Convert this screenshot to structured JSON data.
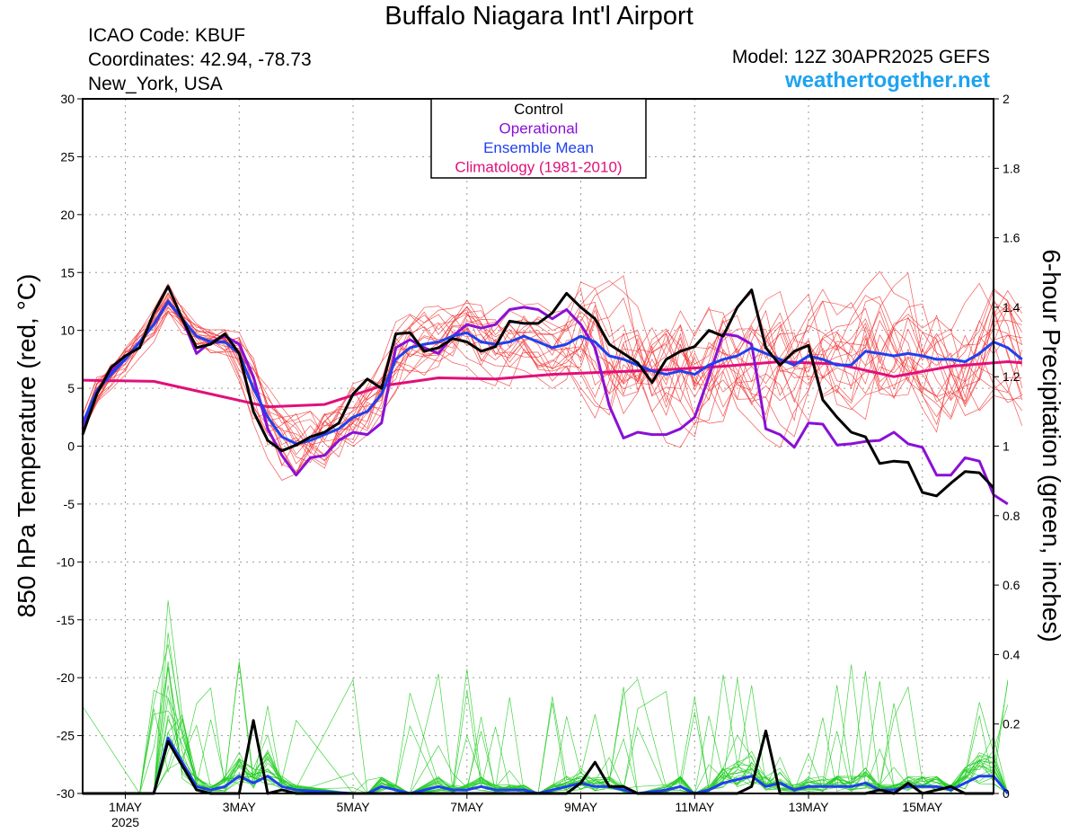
{
  "header": {
    "title": "Buffalo Niagara Int'l Airport",
    "icao": "ICAO Code: KBUF",
    "coordinates": "Coordinates: 42.94, -78.73",
    "location": "New_York, USA",
    "model": "Model: 12Z 30APR2025 GEFS",
    "site": "weathertogether.net"
  },
  "chart_data": {
    "type": "line",
    "ylabel_left": "850 hPa Temperature (red, °C)",
    "ylabel_right": "6-hour Precipitation (green, inches)",
    "ylim_left": [
      -30,
      30
    ],
    "ylim_right": [
      0,
      2
    ],
    "yticks_left": [
      "30",
      "25",
      "20",
      "15",
      "10",
      "5",
      "0",
      "-5",
      "-10",
      "-15",
      "-20",
      "-25",
      "-30"
    ],
    "yticks_right": [
      "2",
      "1.8",
      "1.6",
      "1.4",
      "1.2",
      "1",
      "0.8",
      "0.6",
      "0.4",
      "0.2",
      "0"
    ],
    "xlim_hours": [
      -6,
      378
    ],
    "xticks": [
      {
        "label": "1MAY",
        "sub": "2025",
        "hour": 12
      },
      {
        "label": "3MAY",
        "hour": 60
      },
      {
        "label": "5MAY",
        "hour": 108
      },
      {
        "label": "7MAY",
        "hour": 156
      },
      {
        "label": "9MAY",
        "hour": 204
      },
      {
        "label": "11MAY",
        "hour": 252
      },
      {
        "label": "13MAY",
        "hour": 300
      },
      {
        "label": "15MAY",
        "hour": 348
      }
    ],
    "grid": true,
    "legend": {
      "position": "top-center",
      "entries": [
        {
          "name": "Control",
          "color": "#000000"
        },
        {
          "name": "Operational",
          "color": "#8a10d6"
        },
        {
          "name": "Ensemble Mean",
          "color": "#2040ee"
        },
        {
          "name": "Climatology (1981-2010)",
          "color": "#e0107a"
        }
      ]
    },
    "colors": {
      "members_temp": "#f03030",
      "members_precip": "#22cc22",
      "control": "#000000",
      "operational": "#8a10d6",
      "mean": "#2040ee",
      "climatology": "#e0107a"
    },
    "temp_control": [
      [
        -6,
        1.0
      ],
      [
        0,
        4.5
      ],
      [
        6,
        6.8
      ],
      [
        12,
        7.8
      ],
      [
        18,
        8.5
      ],
      [
        24,
        11.5
      ],
      [
        30,
        13.8
      ],
      [
        36,
        11.0
      ],
      [
        42,
        8.5
      ],
      [
        48,
        8.8
      ],
      [
        54,
        9.7
      ],
      [
        60,
        8.0
      ],
      [
        66,
        3.0
      ],
      [
        72,
        0.5
      ],
      [
        78,
        -0.4
      ],
      [
        84,
        0.1
      ],
      [
        90,
        0.8
      ],
      [
        96,
        1.2
      ],
      [
        102,
        2.0
      ],
      [
        108,
        4.5
      ],
      [
        114,
        5.8
      ],
      [
        120,
        5.0
      ],
      [
        126,
        9.7
      ],
      [
        132,
        9.8
      ],
      [
        138,
        8.2
      ],
      [
        144,
        8.5
      ],
      [
        150,
        9.3
      ],
      [
        156,
        9.0
      ],
      [
        162,
        8.2
      ],
      [
        168,
        8.6
      ],
      [
        174,
        10.8
      ],
      [
        180,
        10.6
      ],
      [
        186,
        10.6
      ],
      [
        192,
        11.5
      ],
      [
        198,
        13.2
      ],
      [
        204,
        12.0
      ],
      [
        210,
        11.0
      ],
      [
        216,
        8.8
      ],
      [
        222,
        8.0
      ],
      [
        228,
        7.2
      ],
      [
        234,
        5.5
      ],
      [
        240,
        7.5
      ],
      [
        246,
        8.2
      ],
      [
        252,
        8.6
      ],
      [
        258,
        10.0
      ],
      [
        264,
        9.5
      ],
      [
        270,
        12.0
      ],
      [
        276,
        13.5
      ],
      [
        282,
        8.5
      ],
      [
        288,
        7.0
      ],
      [
        294,
        8.2
      ],
      [
        300,
        8.7
      ],
      [
        306,
        4.0
      ],
      [
        312,
        2.5
      ],
      [
        318,
        1.2
      ],
      [
        324,
        0.8
      ],
      [
        330,
        -1.5
      ],
      [
        336,
        -1.3
      ],
      [
        342,
        -1.4
      ],
      [
        348,
        -4.0
      ],
      [
        354,
        -4.3
      ],
      [
        360,
        -3.2
      ],
      [
        366,
        -2.2
      ],
      [
        372,
        -2.3
      ],
      [
        378,
        -3.6
      ]
    ],
    "temp_operational": [
      [
        -6,
        1.5
      ],
      [
        0,
        4.6
      ],
      [
        6,
        6.5
      ],
      [
        12,
        7.5
      ],
      [
        18,
        9.0
      ],
      [
        24,
        10.5
      ],
      [
        30,
        12.5
      ],
      [
        36,
        11.0
      ],
      [
        42,
        8.0
      ],
      [
        48,
        9.0
      ],
      [
        54,
        9.5
      ],
      [
        60,
        8.8
      ],
      [
        66,
        6.0
      ],
      [
        72,
        1.5
      ],
      [
        78,
        -0.8
      ],
      [
        84,
        -2.5
      ],
      [
        90,
        -1.0
      ],
      [
        96,
        -0.8
      ],
      [
        102,
        0.5
      ],
      [
        108,
        1.2
      ],
      [
        114,
        1.0
      ],
      [
        120,
        2.0
      ],
      [
        126,
        8.5
      ],
      [
        132,
        9.2
      ],
      [
        138,
        8.5
      ],
      [
        144,
        8.0
      ],
      [
        150,
        9.5
      ],
      [
        156,
        10.5
      ],
      [
        162,
        10.2
      ],
      [
        168,
        10.5
      ],
      [
        174,
        11.8
      ],
      [
        180,
        12.0
      ],
      [
        186,
        11.8
      ],
      [
        192,
        11.0
      ],
      [
        198,
        11.8
      ],
      [
        204,
        10.5
      ],
      [
        210,
        8.5
      ],
      [
        216,
        3.5
      ],
      [
        222,
        0.7
      ],
      [
        228,
        1.2
      ],
      [
        234,
        1.0
      ],
      [
        240,
        1.0
      ],
      [
        246,
        1.5
      ],
      [
        252,
        2.5
      ],
      [
        258,
        6.0
      ],
      [
        264,
        9.7
      ],
      [
        270,
        9.5
      ],
      [
        276,
        8.8
      ],
      [
        282,
        1.5
      ],
      [
        288,
        1.0
      ],
      [
        294,
        -0.1
      ],
      [
        300,
        2.0
      ],
      [
        306,
        1.9
      ],
      [
        312,
        0.1
      ],
      [
        318,
        0.2
      ],
      [
        324,
        0.4
      ],
      [
        330,
        0.5
      ],
      [
        336,
        1.2
      ],
      [
        342,
        0.2
      ],
      [
        348,
        -0.1
      ],
      [
        354,
        -2.5
      ],
      [
        360,
        -2.5
      ],
      [
        366,
        -1.0
      ],
      [
        372,
        -1.3
      ],
      [
        378,
        -4.2
      ],
      [
        384,
        -5.0
      ]
    ],
    "temp_mean": [
      [
        -6,
        2.0
      ],
      [
        0,
        4.8
      ],
      [
        6,
        6.2
      ],
      [
        12,
        7.5
      ],
      [
        18,
        9.0
      ],
      [
        24,
        10.5
      ],
      [
        30,
        12.5
      ],
      [
        36,
        11.0
      ],
      [
        42,
        9.5
      ],
      [
        48,
        9.0
      ],
      [
        54,
        9.0
      ],
      [
        60,
        8.0
      ],
      [
        66,
        5.0
      ],
      [
        72,
        2.5
      ],
      [
        78,
        0.8
      ],
      [
        84,
        0.2
      ],
      [
        90,
        0.5
      ],
      [
        96,
        1.0
      ],
      [
        102,
        1.5
      ],
      [
        108,
        2.5
      ],
      [
        114,
        3.0
      ],
      [
        120,
        4.5
      ],
      [
        126,
        7.5
      ],
      [
        132,
        8.5
      ],
      [
        138,
        8.8
      ],
      [
        144,
        9.0
      ],
      [
        150,
        9.5
      ],
      [
        156,
        9.8
      ],
      [
        162,
        9.0
      ],
      [
        168,
        8.8
      ],
      [
        174,
        9.0
      ],
      [
        180,
        9.5
      ],
      [
        186,
        9.0
      ],
      [
        192,
        8.5
      ],
      [
        198,
        8.8
      ],
      [
        204,
        9.5
      ],
      [
        210,
        9.0
      ],
      [
        216,
        7.8
      ],
      [
        222,
        7.5
      ],
      [
        228,
        7.0
      ],
      [
        234,
        6.5
      ],
      [
        240,
        6.2
      ],
      [
        246,
        6.5
      ],
      [
        252,
        6.2
      ],
      [
        258,
        7.0
      ],
      [
        264,
        7.5
      ],
      [
        270,
        7.8
      ],
      [
        276,
        8.5
      ],
      [
        282,
        8.0
      ],
      [
        288,
        7.5
      ],
      [
        294,
        7.0
      ],
      [
        300,
        7.8
      ],
      [
        306,
        7.5
      ],
      [
        312,
        7.0
      ],
      [
        318,
        7.0
      ],
      [
        324,
        8.2
      ],
      [
        330,
        8.0
      ],
      [
        336,
        7.8
      ],
      [
        342,
        8.0
      ],
      [
        348,
        7.8
      ],
      [
        354,
        7.5
      ],
      [
        360,
        7.5
      ],
      [
        366,
        7.3
      ],
      [
        372,
        8.0
      ],
      [
        378,
        9.0
      ],
      [
        384,
        8.5
      ],
      [
        390,
        7.5
      ]
    ],
    "temp_climatology": [
      [
        -6,
        5.7
      ],
      [
        24,
        5.6
      ],
      [
        48,
        4.5
      ],
      [
        72,
        3.4
      ],
      [
        96,
        3.6
      ],
      [
        120,
        5.2
      ],
      [
        144,
        5.9
      ],
      [
        168,
        5.8
      ],
      [
        192,
        6.2
      ],
      [
        216,
        6.4
      ],
      [
        240,
        6.6
      ],
      [
        264,
        6.9
      ],
      [
        288,
        7.3
      ],
      [
        312,
        7.1
      ],
      [
        336,
        6.0
      ],
      [
        360,
        6.9
      ],
      [
        384,
        7.3
      ],
      [
        390,
        7.2
      ]
    ],
    "precip_control": [
      [
        -6,
        0
      ],
      [
        18,
        0
      ],
      [
        24,
        0
      ],
      [
        30,
        0.15
      ],
      [
        36,
        0.08
      ],
      [
        42,
        0.01
      ],
      [
        48,
        0
      ],
      [
        54,
        0
      ],
      [
        60,
        0
      ],
      [
        66,
        0.21
      ],
      [
        72,
        0
      ],
      [
        78,
        0.01
      ],
      [
        84,
        0
      ],
      [
        180,
        0
      ],
      [
        198,
        0.0
      ],
      [
        204,
        0.03
      ],
      [
        210,
        0.09
      ],
      [
        216,
        0.02
      ],
      [
        222,
        0.02
      ],
      [
        228,
        0
      ],
      [
        264,
        0
      ],
      [
        270,
        0
      ],
      [
        276,
        0.02
      ],
      [
        282,
        0.18
      ],
      [
        288,
        0
      ],
      [
        324,
        0
      ],
      [
        330,
        0.01
      ],
      [
        336,
        0.0
      ],
      [
        342,
        0.03
      ],
      [
        348,
        0
      ],
      [
        360,
        0.02
      ],
      [
        366,
        0
      ],
      [
        378,
        0
      ]
    ],
    "precip_mean": [
      [
        -6,
        0
      ],
      [
        18,
        0
      ],
      [
        24,
        0
      ],
      [
        30,
        0.16
      ],
      [
        36,
        0.09
      ],
      [
        42,
        0.02
      ],
      [
        48,
        0.01
      ],
      [
        54,
        0.02
      ],
      [
        60,
        0.05
      ],
      [
        66,
        0.03
      ],
      [
        72,
        0.05
      ],
      [
        78,
        0.02
      ],
      [
        84,
        0.01
      ],
      [
        108,
        0
      ],
      [
        114,
        0.0
      ],
      [
        120,
        0.02
      ],
      [
        126,
        0.01
      ],
      [
        132,
        0
      ],
      [
        144,
        0.02
      ],
      [
        150,
        0.01
      ],
      [
        156,
        0.01
      ],
      [
        162,
        0.02
      ],
      [
        168,
        0.01
      ],
      [
        174,
        0.01
      ],
      [
        180,
        0.01
      ],
      [
        186,
        0
      ],
      [
        192,
        0.01
      ],
      [
        198,
        0.02
      ],
      [
        204,
        0.03
      ],
      [
        210,
        0.02
      ],
      [
        216,
        0.02
      ],
      [
        222,
        0.01
      ],
      [
        228,
        0.0
      ],
      [
        240,
        0.01
      ],
      [
        246,
        0.02
      ],
      [
        252,
        0.0
      ],
      [
        258,
        0.01
      ],
      [
        264,
        0.03
      ],
      [
        270,
        0.04
      ],
      [
        276,
        0.05
      ],
      [
        282,
        0.02
      ],
      [
        288,
        0.03
      ],
      [
        294,
        0.01
      ],
      [
        300,
        0.02
      ],
      [
        306,
        0.02
      ],
      [
        312,
        0.02
      ],
      [
        318,
        0.02
      ],
      [
        324,
        0.03
      ],
      [
        330,
        0.01
      ],
      [
        336,
        0.01
      ],
      [
        342,
        0.02
      ],
      [
        348,
        0.02
      ],
      [
        354,
        0.02
      ],
      [
        360,
        0.01
      ],
      [
        366,
        0.03
      ],
      [
        372,
        0.05
      ],
      [
        378,
        0.05
      ],
      [
        384,
        0.0
      ]
    ]
  }
}
